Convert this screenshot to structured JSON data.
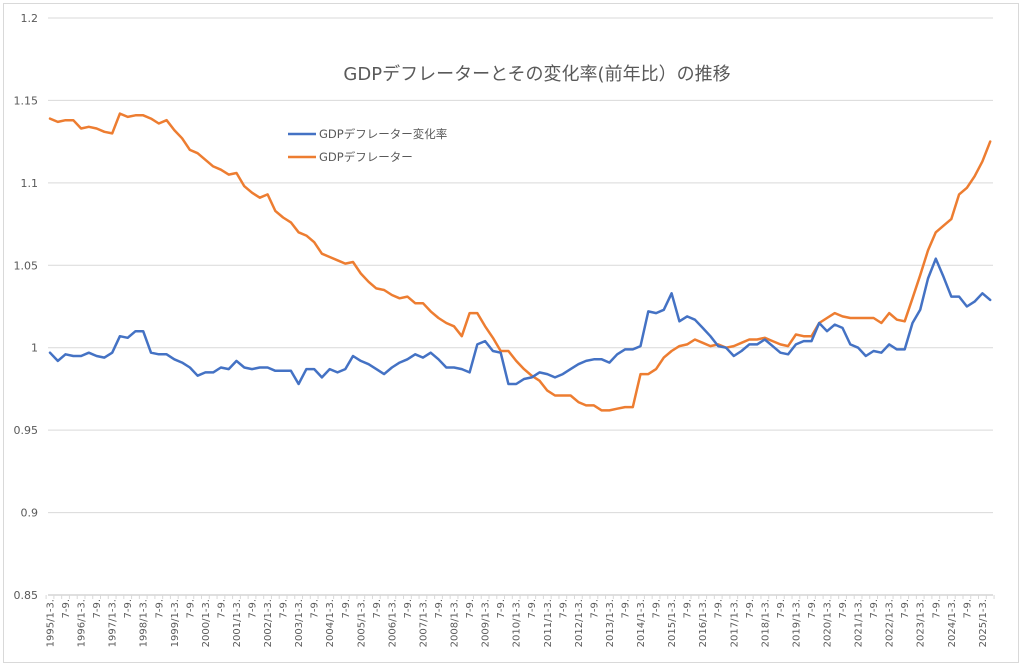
{
  "chart_data": {
    "type": "line",
    "title": "GDPデフレーターとその変化率(前年比）の推移",
    "xlabel": "",
    "ylabel": "",
    "ylim": [
      0.85,
      1.2
    ],
    "y_ticks": [
      "0.85",
      "0.9",
      "0.95",
      "1",
      "1.05",
      "1.1",
      "1.15",
      "1.2"
    ],
    "y_tick_values": [
      0.85,
      0.9,
      0.95,
      1.0,
      1.05,
      1.1,
      1.15,
      1.2
    ],
    "grid": true,
    "legend_position": "upper-left-inside",
    "x_frequency": "quarterly, 1995 Q1 to 2025 Q2; every second quarter labeled",
    "x_tick_labels": [
      "1995/1-3.",
      "7-9.",
      "1996/1-3.",
      "7-9.",
      "1997/1-3.",
      "7-9.",
      "1998/1-3.",
      "7-9.",
      "1999/1-3.",
      "7-9.",
      "2000/1-3.",
      "7-9.",
      "2001/1-3.",
      "7-9.",
      "2002/1-3.",
      "7-9.",
      "2003/1-3.",
      "7-9.",
      "2004/1-3.",
      "7-9.",
      "2005/1-3.",
      "7-9.",
      "2006/1-3.",
      "7-9.",
      "2007/1-3.",
      "7-9.",
      "2008/1-3.",
      "7-9.",
      "2009/1-3.",
      "7-9.",
      "2010/1-3.",
      "7-9.",
      "2011/1-3.",
      "7-9.",
      "2012/1-3.",
      "7-9.",
      "2013/1-3.",
      "7-9.",
      "2014/1-3.",
      "7-9.",
      "2015/1-3.",
      "7-9.",
      "2016/1-3.",
      "7-9.",
      "2017/1-3.",
      "7-9.",
      "2018/1-3.",
      "7-9.",
      "2019/1-3.",
      "7-9.",
      "2020/1-3.",
      "7-9.",
      "2021/1-3.",
      "7-9.",
      "2022/1-3.",
      "7-9.",
      "2023/1-3.",
      "7-9.",
      "2024/1-3.",
      "7-9.",
      "2025/1-3."
    ],
    "series": [
      {
        "name": "GDPデフレーター変化率",
        "color": "#4472c4",
        "values": [
          0.997,
          0.992,
          0.996,
          0.995,
          0.995,
          0.997,
          0.995,
          0.994,
          0.997,
          1.007,
          1.006,
          1.01,
          1.01,
          0.997,
          0.996,
          0.996,
          0.993,
          0.991,
          0.988,
          0.983,
          0.985,
          0.985,
          0.988,
          0.987,
          0.992,
          0.988,
          0.987,
          0.988,
          0.988,
          0.986,
          0.986,
          0.986,
          0.978,
          0.987,
          0.987,
          0.982,
          0.987,
          0.985,
          0.987,
          0.995,
          0.992,
          0.99,
          0.987,
          0.984,
          0.988,
          0.991,
          0.993,
          0.996,
          0.994,
          0.997,
          0.993,
          0.988,
          0.988,
          0.987,
          0.985,
          1.002,
          1.004,
          0.998,
          0.997,
          0.978,
          0.978,
          0.981,
          0.982,
          0.985,
          0.984,
          0.982,
          0.984,
          0.987,
          0.99,
          0.992,
          0.993,
          0.993,
          0.991,
          0.996,
          0.999,
          0.999,
          1.001,
          1.022,
          1.021,
          1.023,
          1.033,
          1.016,
          1.019,
          1.017,
          1.012,
          1.007,
          1.001,
          1.0,
          0.995,
          0.998,
          1.002,
          1.002,
          1.005,
          1.001,
          0.997,
          0.996,
          1.002,
          1.004,
          1.004,
          1.015,
          1.01,
          1.014,
          1.012,
          1.002,
          1.0,
          0.995,
          0.998,
          0.997,
          1.002,
          0.999,
          0.999,
          1.015,
          1.023,
          1.042,
          1.054,
          1.043,
          1.031,
          1.031,
          1.025,
          1.028,
          1.033,
          1.029
        ]
      },
      {
        "name": "GDPデフレーター",
        "color": "#ed7d31",
        "values": [
          1.139,
          1.137,
          1.138,
          1.138,
          1.133,
          1.134,
          1.133,
          1.131,
          1.13,
          1.142,
          1.14,
          1.141,
          1.141,
          1.139,
          1.136,
          1.138,
          1.132,
          1.127,
          1.12,
          1.118,
          1.114,
          1.11,
          1.108,
          1.105,
          1.106,
          1.098,
          1.094,
          1.091,
          1.093,
          1.083,
          1.079,
          1.076,
          1.07,
          1.068,
          1.064,
          1.057,
          1.055,
          1.053,
          1.051,
          1.052,
          1.045,
          1.04,
          1.036,
          1.035,
          1.032,
          1.03,
          1.031,
          1.027,
          1.027,
          1.022,
          1.018,
          1.015,
          1.013,
          1.007,
          1.021,
          1.021,
          1.013,
          1.006,
          0.998,
          0.998,
          0.992,
          0.987,
          0.983,
          0.98,
          0.974,
          0.971,
          0.971,
          0.971,
          0.967,
          0.965,
          0.965,
          0.962,
          0.962,
          0.963,
          0.964,
          0.964,
          0.984,
          0.984,
          0.987,
          0.994,
          0.998,
          1.001,
          1.002,
          1.005,
          1.003,
          1.001,
          1.002,
          1.0,
          1.001,
          1.003,
          1.005,
          1.005,
          1.006,
          1.004,
          1.002,
          1.001,
          1.008,
          1.007,
          1.007,
          1.015,
          1.018,
          1.021,
          1.019,
          1.018,
          1.018,
          1.018,
          1.018,
          1.015,
          1.021,
          1.017,
          1.016,
          1.03,
          1.044,
          1.059,
          1.07,
          1.074,
          1.078,
          1.093,
          1.097,
          1.104,
          1.113,
          1.125
        ]
      }
    ]
  }
}
